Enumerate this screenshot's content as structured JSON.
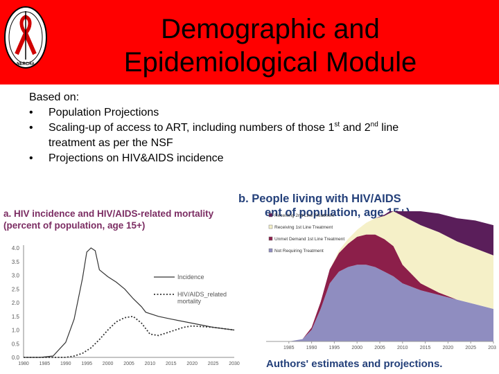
{
  "slide": {
    "title_line1": "Demographic and",
    "title_line2": "Epidemiological Module",
    "logo_text": "NERCHA",
    "intro": "Based on:",
    "bullets": {
      "b1": "Population Projections",
      "b2_pre": "Scaling-up of access to ART, including numbers of those 1",
      "b2_sup1": "st",
      "b2_mid": " and 2",
      "b2_sup2": "nd",
      "b2_post": " line",
      "b2_line2": "treatment as per the NSF",
      "b3": "Projections on HIV&AIDS incidence"
    }
  },
  "chart_data": [
    {
      "type": "line",
      "title_line1": "a. HIV incidence and HIV/AIDS-related mortality",
      "title_line2": "(percent of population, age 15+)",
      "x_ticks": [
        "1980",
        "1985",
        "1990",
        "1995",
        "2000",
        "2005",
        "2010",
        "2015",
        "2020",
        "2025",
        "2030"
      ],
      "y_ticks": [
        "0.0",
        "0.5",
        "1.0",
        "1.5",
        "2.0",
        "2.5",
        "3.0",
        "3.5",
        "4.0"
      ],
      "xlim": [
        1980,
        2030
      ],
      "ylim": [
        0,
        4.0
      ],
      "grid": false,
      "legend": "right",
      "series": [
        {
          "name": "Incidence",
          "style": "solid",
          "color": "#333333",
          "x": [
            1980,
            1984,
            1987,
            1990,
            1992,
            1994,
            1995,
            1996,
            1997,
            1998,
            2000,
            2002,
            2004,
            2006,
            2008,
            2009,
            2012,
            2015,
            2020,
            2025,
            2030
          ],
          "y": [
            0.0,
            0.0,
            0.05,
            0.55,
            1.4,
            2.9,
            3.85,
            4.0,
            3.9,
            3.2,
            2.95,
            2.75,
            2.5,
            2.15,
            1.85,
            1.65,
            1.5,
            1.4,
            1.25,
            1.1,
            1.0
          ]
        },
        {
          "name": "HIV/AIDS_related mortality",
          "style": "dotted",
          "color": "#333333",
          "x": [
            1980,
            1990,
            1992,
            1994,
            1996,
            1998,
            2000,
            2002,
            2004,
            2006,
            2008,
            2010,
            2012,
            2015,
            2018,
            2020,
            2025,
            2030
          ],
          "y": [
            0.0,
            0.0,
            0.05,
            0.15,
            0.35,
            0.65,
            1.0,
            1.3,
            1.45,
            1.5,
            1.25,
            0.85,
            0.8,
            0.95,
            1.1,
            1.15,
            1.1,
            1.0
          ]
        }
      ]
    },
    {
      "type": "area",
      "title_line1": "b. People living with HIV/AIDS",
      "title_line2": "ent of population, age 15+)",
      "x_ticks": [
        "1985",
        "1990",
        "1995",
        "2000",
        "2005",
        "2010",
        "2015",
        "2020",
        "2025",
        "2030"
      ],
      "xlim": [
        1980,
        2030
      ],
      "legend": "top-left",
      "stacked": true,
      "x": [
        1980,
        1985,
        1988,
        1990,
        1992,
        1994,
        1996,
        1998,
        2000,
        2002,
        2004,
        2006,
        2008,
        2010,
        2014,
        2018,
        2022,
        2026,
        2030
      ],
      "series": [
        {
          "name": "Not Requiring Treatment",
          "color": "#8f8dc0",
          "values": [
            0,
            0,
            1,
            5,
            14,
            25,
            30,
            32,
            33,
            33,
            32,
            30,
            28,
            25,
            22,
            20,
            18,
            16,
            14
          ]
        },
        {
          "name": "Unmet Demand 1st Line Treatment",
          "color": "#8c1f4a",
          "values": [
            0,
            0,
            0,
            1,
            3,
            6,
            8,
            10,
            12,
            13,
            14,
            14,
            13,
            8,
            3,
            1,
            0,
            0,
            0
          ]
        },
        {
          "name": "Receiving 1st Line Treatment",
          "color": "#f5f0c8",
          "values": [
            0,
            0,
            0,
            0,
            0,
            0,
            1,
            2,
            3,
            5,
            7,
            10,
            15,
            21,
            25,
            26,
            25,
            24,
            23
          ]
        },
        {
          "name": "Receiving 2nd Line Treatment",
          "color": "#5a1e5a",
          "values": [
            0,
            0,
            0,
            0,
            0,
            0,
            0,
            0,
            0,
            0,
            0,
            0.5,
            1,
            3,
            6,
            8,
            10,
            12,
            13
          ]
        }
      ],
      "ylim": [
        0,
        56
      ]
    }
  ],
  "source": "Authors' estimates and projections."
}
